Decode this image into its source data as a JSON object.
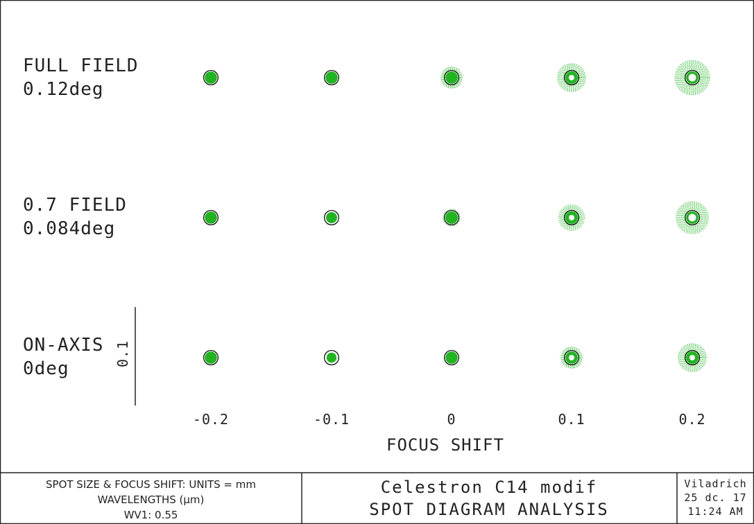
{
  "chart_data": {
    "type": "scatter",
    "subtype": "spot-diagram-grid",
    "x_title": "FOCUS SHIFT",
    "x_values": [
      "-0.2",
      "-0.1",
      "0",
      "0.1",
      "0.2"
    ],
    "rows": [
      {
        "name_line1": "FULL FIELD",
        "name_line2": "0.12deg",
        "spot_radius_rel": [
          0.55,
          0.6,
          0.95,
          1.25,
          1.55
        ],
        "hollow": [
          false,
          false,
          false,
          true,
          true
        ]
      },
      {
        "name_line1": "0.7 FIELD",
        "name_line2": "0.084deg",
        "spot_radius_rel": [
          0.55,
          0.5,
          0.75,
          1.15,
          1.45
        ],
        "hollow": [
          false,
          false,
          false,
          true,
          true
        ]
      },
      {
        "name_line1": "ON-AXIS",
        "name_line2": "0deg",
        "spot_radius_rel": [
          0.55,
          0.45,
          0.55,
          0.95,
          1.25
        ],
        "hollow": [
          false,
          false,
          false,
          true,
          true
        ]
      }
    ],
    "scale_bar_label": "0.1",
    "spot_color": "#1fb51f",
    "airy_color": "#111111",
    "grid": false
  },
  "footer": {
    "left_line1": "SPOT SIZE & FOCUS SHIFT: UNITS = mm",
    "left_line2": "WAVELENGTHS (μm)",
    "left_line3": "WV1: 0.55",
    "title_line1": "Celestron C14 modif",
    "title_line2": "SPOT DIAGRAM ANALYSIS",
    "right_line1": "Viladrich",
    "right_line2": "25 dc. 17",
    "right_line3": "11:24 AM"
  }
}
